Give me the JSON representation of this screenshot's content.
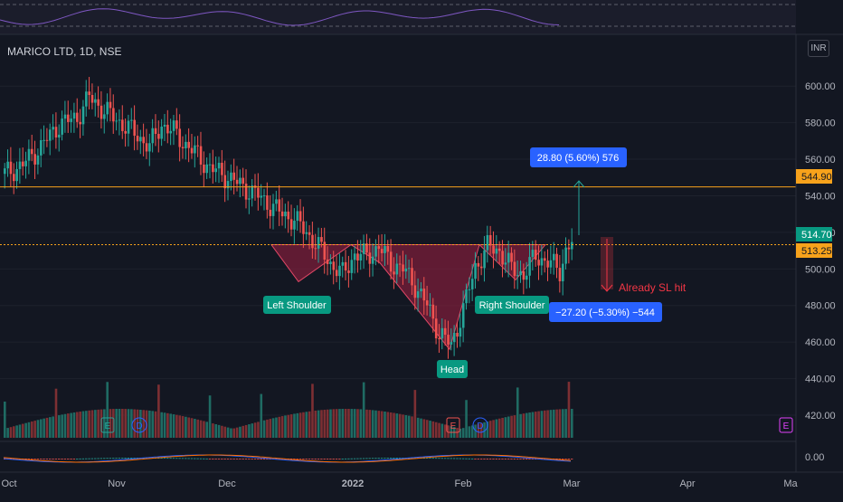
{
  "symbol": {
    "title": "MARICO LTD, 1D, NSE",
    "currency": "INR"
  },
  "colors": {
    "background": "#131722",
    "up": "#26a69a",
    "down": "#ef5350",
    "pattern_fill": "#7b1e3a",
    "resistance": "#f7a21b",
    "label_green": "#089981",
    "label_blue": "#2962ff",
    "annotation_red": "#f23645"
  },
  "price_axis": {
    "labels": [
      "600.00",
      "580.00",
      "560.00",
      "540.00",
      "520.00",
      "500.00",
      "480.00",
      "460.00",
      "440.00",
      "420.00",
      "0.00"
    ]
  },
  "time_axis": {
    "labels": [
      "Oct",
      "Nov",
      "Dec",
      "2022",
      "Feb",
      "Mar",
      "Apr",
      "Ma"
    ]
  },
  "price_tags": {
    "resistance": "544.90",
    "last": "514.70",
    "level": "513.25"
  },
  "pattern_labels": {
    "left_shoulder": "Left Shoulder",
    "head": "Head",
    "right_shoulder": "Right Shoulder"
  },
  "measure": {
    "up": "28.80 (5.60%) 576",
    "down": "−27.20 (−5.30%) −544"
  },
  "annotation": "Already SL hit",
  "event_markers": [
    {
      "type": "E",
      "label": "E"
    },
    {
      "type": "D",
      "label": "D"
    },
    {
      "type": "E",
      "label": "E"
    },
    {
      "type": "D",
      "label": "D"
    },
    {
      "type": "E",
      "label": "E"
    }
  ],
  "chart_data": {
    "type": "candlestick",
    "symbol": "MARICO LTD",
    "interval": "1D",
    "exchange": "NSE",
    "y_range": [
      420,
      610
    ],
    "resistance": 544.9,
    "neckline": 513.25,
    "last_close": 514.7,
    "price_path": [
      [
        0,
        552
      ],
      [
        6,
        557
      ],
      [
        12,
        567
      ],
      [
        18,
        579
      ],
      [
        24,
        583
      ],
      [
        28,
        594
      ],
      [
        32,
        588
      ],
      [
        36,
        583
      ],
      [
        40,
        578
      ],
      [
        44,
        573
      ],
      [
        48,
        567
      ],
      [
        52,
        579
      ],
      [
        56,
        575
      ],
      [
        60,
        568
      ],
      [
        64,
        562
      ],
      [
        68,
        555
      ],
      [
        72,
        552
      ],
      [
        76,
        548
      ],
      [
        80,
        544
      ],
      [
        84,
        540
      ],
      [
        88,
        535
      ],
      [
        92,
        530
      ],
      [
        96,
        527
      ],
      [
        100,
        520
      ],
      [
        104,
        512
      ],
      [
        108,
        503
      ],
      [
        112,
        497
      ],
      [
        116,
        508
      ],
      [
        120,
        507
      ],
      [
        124,
        512
      ],
      [
        128,
        503
      ],
      [
        132,
        500
      ],
      [
        136,
        491
      ],
      [
        140,
        480
      ],
      [
        144,
        465
      ],
      [
        148,
        458
      ],
      [
        152,
        478
      ],
      [
        156,
        501
      ],
      [
        160,
        512
      ],
      [
        164,
        510
      ],
      [
        168,
        500
      ],
      [
        172,
        497
      ],
      [
        176,
        507
      ],
      [
        180,
        504
      ],
      [
        184,
        499
      ],
      [
        186,
        510
      ],
      [
        188,
        514.7
      ]
    ],
    "head_and_shoulders": {
      "left_shoulder": 493,
      "head": 456,
      "right_shoulder": 494,
      "neckline": 513.25
    },
    "measures": [
      {
        "change": 28.8,
        "percent": 5.6,
        "ticks": 576
      },
      {
        "change": -27.2,
        "percent": -5.3,
        "ticks": -544
      }
    ]
  }
}
